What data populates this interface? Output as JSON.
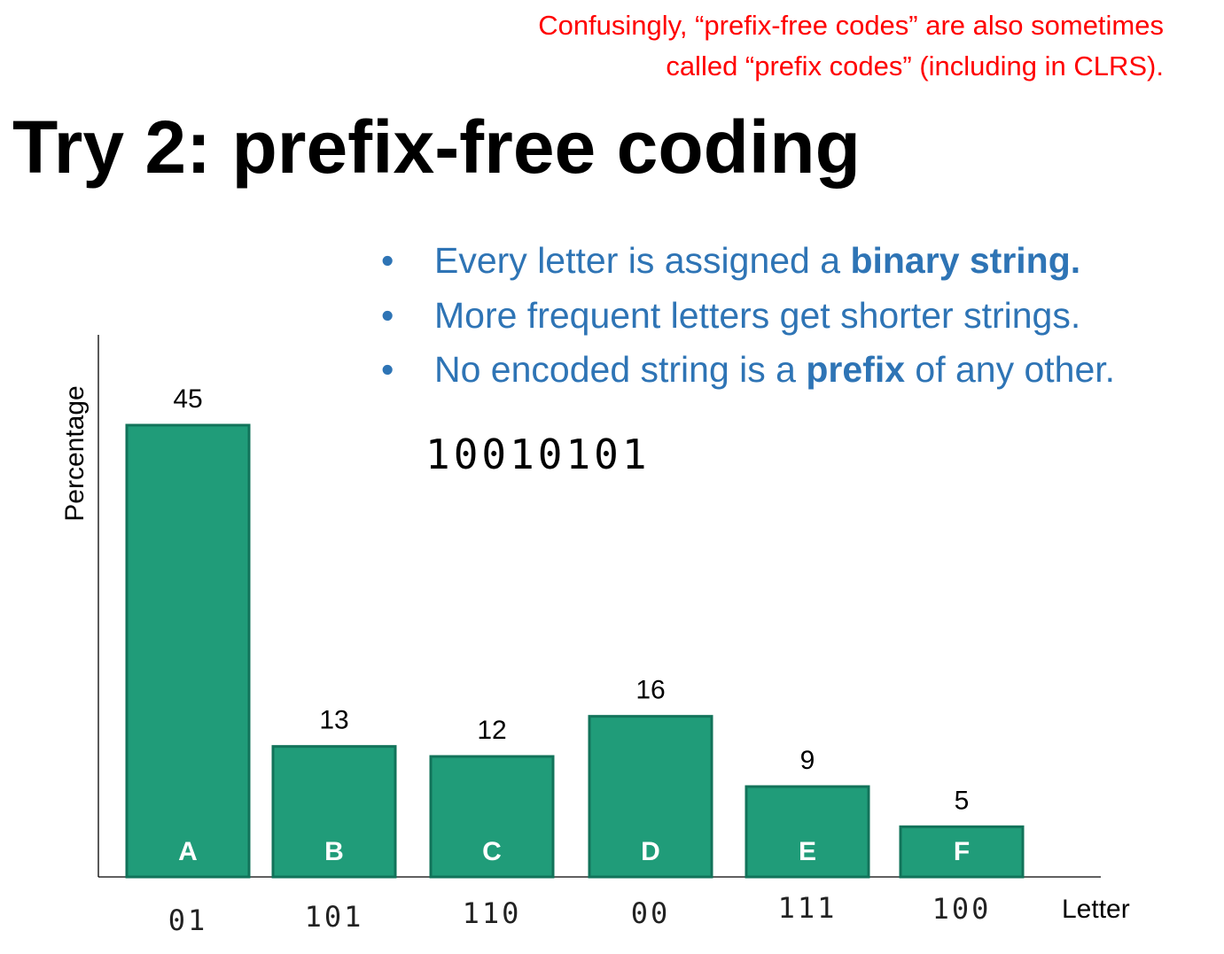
{
  "note": {
    "line1": "Confusingly, “prefix-free codes” are also sometimes",
    "line2": "called “prefix codes” (including in CLRS)."
  },
  "title": "Try 2: prefix-free coding",
  "bullets": [
    {
      "before": "Every letter is assigned a ",
      "bold": "binary string.",
      "after": ""
    },
    {
      "before": "More frequent letters get shorter strings.",
      "bold": "",
      "after": ""
    },
    {
      "before": "No encoded string is a ",
      "bold": "prefix",
      "after": " of any other."
    }
  ],
  "bullet_symbol": "•",
  "encoded_string": "10010101",
  "colors": {
    "bar_fill": "#209c79",
    "bar_stroke": "#12735a",
    "note": "#ff0000",
    "bullets": "#2e74b5"
  },
  "chart_data": {
    "type": "bar",
    "categories": [
      "A",
      "B",
      "C",
      "D",
      "E",
      "F"
    ],
    "values": [
      45,
      13,
      12,
      16,
      9,
      5
    ],
    "codes": [
      "01",
      "101",
      "110",
      "00",
      "111",
      "100"
    ],
    "xlabel": "Letter",
    "ylabel": "Percentage",
    "ylim": [
      0,
      54
    ],
    "grid": false
  }
}
